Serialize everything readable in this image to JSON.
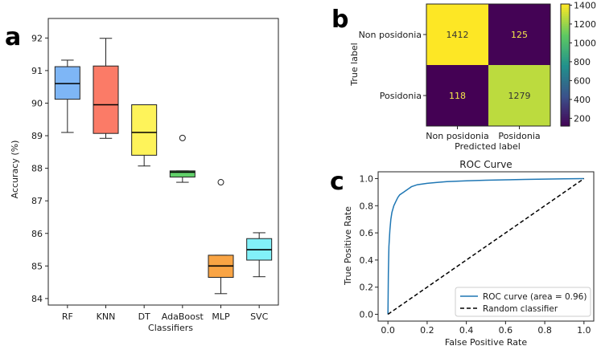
{
  "panels": {
    "a": {
      "letter": "a"
    },
    "b": {
      "letter": "b"
    },
    "c": {
      "letter": "c"
    }
  },
  "chart_data": [
    {
      "type": "box",
      "panel": "a",
      "title": "",
      "xlabel": "Classifiers",
      "ylabel": "Accuracy (%)",
      "ylim": [
        83.8,
        92.6
      ],
      "yticks": [
        84,
        85,
        86,
        87,
        88,
        89,
        90,
        91,
        92
      ],
      "boxes": [
        {
          "name": "RF",
          "color": "#7eb6f6",
          "min": 89.1,
          "q1": 90.12,
          "median": 90.6,
          "q3": 91.12,
          "max": 91.32,
          "outliers": []
        },
        {
          "name": "KNN",
          "color": "#fb7b67",
          "min": 88.92,
          "q1": 89.07,
          "median": 89.95,
          "q3": 91.14,
          "max": 91.99,
          "outliers": []
        },
        {
          "name": "DT",
          "color": "#fef35a",
          "min": 88.07,
          "q1": 88.4,
          "median": 89.1,
          "q3": 89.95,
          "max": 89.95,
          "outliers": []
        },
        {
          "name": "AdaBoost",
          "color": "#62d06a",
          "min": 87.57,
          "q1": 87.73,
          "median": 87.88,
          "q3": 87.92,
          "max": 87.92,
          "outliers": [
            88.93
          ]
        },
        {
          "name": "MLP",
          "color": "#f9a444",
          "min": 84.15,
          "q1": 84.65,
          "median": 85.0,
          "q3": 85.33,
          "max": 85.33,
          "outliers": [
            87.57
          ]
        },
        {
          "name": "SVC",
          "color": "#82f1f9",
          "min": 84.67,
          "q1": 85.18,
          "median": 85.5,
          "q3": 85.84,
          "max": 86.02,
          "outliers": []
        }
      ]
    },
    {
      "type": "heatmap",
      "panel": "b",
      "title": "",
      "xlabel": "Predicted label",
      "ylabel": "True label",
      "x_categories": [
        "Non posidonia",
        "Posidonia"
      ],
      "y_categories": [
        "Non posidonia",
        "Posidonia"
      ],
      "values": [
        [
          1412,
          125
        ],
        [
          118,
          1279
        ]
      ],
      "colorbar": {
        "range": [
          118,
          1412
        ],
        "ticks": [
          200,
          400,
          600,
          800,
          1000,
          1200,
          1400
        ],
        "colormap": "viridis"
      }
    },
    {
      "type": "line",
      "panel": "c",
      "title": "ROC Curve",
      "xlabel": "False Positive Rate",
      "ylabel": "True Positive Rate",
      "xlim": [
        -0.05,
        1.05
      ],
      "ylim": [
        -0.05,
        1.05
      ],
      "xticks": [
        "0.0",
        "0.2",
        "0.4",
        "0.6",
        "0.8",
        "1.0"
      ],
      "yticks": [
        "0.0",
        "0.2",
        "0.4",
        "0.6",
        "0.8",
        "1.0"
      ],
      "legend_position": "bottom-right",
      "series": [
        {
          "name": "ROC curve (area = 0.96)",
          "color": "#1f77b4",
          "style": "solid",
          "x": [
            0,
            0.002,
            0.005,
            0.01,
            0.015,
            0.02,
            0.03,
            0.04,
            0.05,
            0.06,
            0.08,
            0.1,
            0.12,
            0.15,
            0.2,
            0.25,
            0.3,
            0.4,
            0.5,
            0.6,
            0.7,
            0.8,
            0.9,
            1.0
          ],
          "y": [
            0,
            0.3,
            0.5,
            0.62,
            0.7,
            0.75,
            0.8,
            0.83,
            0.86,
            0.88,
            0.9,
            0.92,
            0.94,
            0.955,
            0.965,
            0.972,
            0.977,
            0.983,
            0.988,
            0.991,
            0.994,
            0.996,
            0.998,
            1.0
          ]
        },
        {
          "name": "Random classifier",
          "color": "#000000",
          "style": "dashed",
          "x": [
            0,
            1
          ],
          "y": [
            0,
            1
          ]
        }
      ]
    }
  ]
}
